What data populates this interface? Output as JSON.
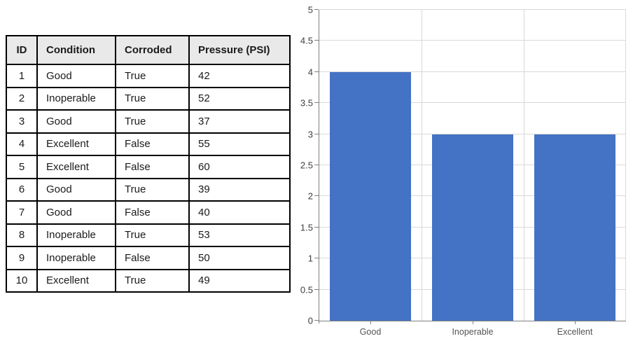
{
  "table": {
    "headers": [
      "ID",
      "Condition",
      "Corroded",
      "Pressure (PSI)"
    ],
    "rows": [
      [
        "1",
        "Good",
        "True",
        "42"
      ],
      [
        "2",
        "Inoperable",
        "True",
        "52"
      ],
      [
        "3",
        "Good",
        "True",
        "37"
      ],
      [
        "4",
        "Excellent",
        "False",
        "55"
      ],
      [
        "5",
        "Excellent",
        "False",
        "60"
      ],
      [
        "6",
        "Good",
        "True",
        "39"
      ],
      [
        "7",
        "Good",
        "False",
        "40"
      ],
      [
        "8",
        "Inoperable",
        "True",
        "53"
      ],
      [
        "9",
        "Inoperable",
        "False",
        "50"
      ],
      [
        "10",
        "Excellent",
        "True",
        "49"
      ]
    ]
  },
  "chart_data": {
    "type": "bar",
    "title": "",
    "xlabel": "",
    "ylabel": "",
    "categories": [
      "Good",
      "Inoperable",
      "Excellent"
    ],
    "values": [
      4,
      3,
      3
    ],
    "ylim": [
      0,
      5
    ],
    "ytick_step": 0.5,
    "ytick_labels": [
      "0",
      "0.5",
      "1",
      "1.5",
      "2",
      "2.5",
      "3",
      "3.5",
      "4",
      "4.5",
      "5"
    ],
    "grid": true,
    "legend_position": "none",
    "bar_width_fraction": 0.8,
    "bar_color": "#4472C4",
    "gridline_color": "#D9D9D9",
    "axis_color": "#7F7F7F",
    "ytick_label_color": "#3D3D3D",
    "xtick_label_color": "#545454"
  },
  "colors": {
    "table_header_bg": "#E9E9E9",
    "table_border": "#000000"
  }
}
